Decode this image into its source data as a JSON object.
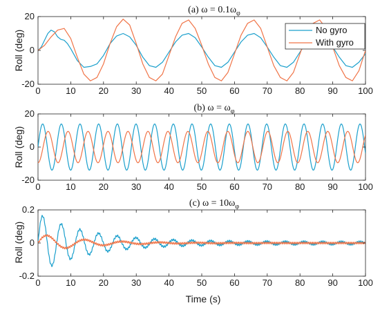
{
  "figure": {
    "xlabel": "Time (s)"
  },
  "chart_data": [
    {
      "type": "line",
      "title": "(a) ω = 0.1ω",
      "title_sub": "φ",
      "ylabel": "Roll (deg)",
      "xlim": [
        0,
        100
      ],
      "ylim": [
        -20,
        20
      ],
      "xticks": [
        "0",
        "10",
        "20",
        "30",
        "40",
        "50",
        "60",
        "70",
        "80",
        "90",
        "100"
      ],
      "yticks": [
        "20",
        "0",
        "-20"
      ],
      "ytick_values": [
        20,
        0,
        -20
      ],
      "grid": false,
      "legend": {
        "placement": "top-right",
        "entries": [
          "No gyro",
          "With gyro"
        ]
      },
      "series": [
        {
          "name": "No gyro",
          "color": "#1a9fcc",
          "x": [
            0,
            1,
            2,
            3,
            4,
            5,
            6,
            7,
            8,
            9,
            10,
            12,
            14,
            16,
            18,
            20,
            22,
            24,
            26,
            28,
            30,
            32,
            34,
            36,
            38,
            40,
            42,
            44,
            46,
            48,
            50,
            52,
            54,
            56,
            58,
            60,
            62,
            64,
            66,
            68,
            70,
            72,
            74,
            76,
            78,
            80,
            82,
            84,
            86,
            88,
            90,
            92,
            94,
            96,
            98,
            100
          ],
          "y": [
            0,
            2,
            6,
            10,
            12,
            11,
            8,
            6.5,
            6,
            4,
            1,
            -6,
            -10,
            -9.5,
            -8,
            -3,
            4,
            8.5,
            10,
            8,
            3,
            -4,
            -9,
            -10,
            -7,
            -1,
            5,
            9,
            10,
            7.5,
            2,
            -4,
            -9,
            -10,
            -7,
            -1,
            5,
            9,
            10,
            7.5,
            2,
            -4,
            -9,
            -10,
            -7,
            -1,
            5,
            9,
            10,
            7.5,
            2,
            -4,
            -9,
            -10,
            -7,
            -2
          ]
        },
        {
          "name": "With gyro",
          "color": "#f07346",
          "x": [
            0,
            2,
            4,
            6,
            8,
            10,
            12,
            14,
            16,
            18,
            20,
            22,
            24,
            26,
            28,
            30,
            32,
            34,
            36,
            38,
            40,
            42,
            44,
            46,
            48,
            50,
            52,
            54,
            56,
            58,
            60,
            62,
            64,
            66,
            68,
            70,
            72,
            74,
            76,
            78,
            80,
            82,
            84,
            86,
            88,
            90,
            92,
            94,
            96,
            98,
            100
          ],
          "y": [
            0,
            3,
            8,
            12,
            13,
            7,
            -4,
            -14,
            -18,
            -16,
            -8,
            4,
            14,
            18.5,
            15,
            4,
            -8,
            -16,
            -18,
            -14,
            -3,
            8,
            16,
            18,
            13,
            3,
            -8,
            -16,
            -18,
            -13,
            -2,
            9,
            16,
            18,
            13,
            2,
            -9,
            -16,
            -18,
            -13,
            -2,
            9,
            16,
            18,
            13,
            2,
            -9,
            -16,
            -18,
            -12,
            0
          ]
        }
      ]
    },
    {
      "type": "line",
      "title": "(b) ω = ω",
      "title_sub": "φ",
      "ylabel": "Roll (deg)",
      "xlim": [
        0,
        100
      ],
      "ylim": [
        -20,
        20
      ],
      "xticks": [
        "0",
        "10",
        "20",
        "30",
        "40",
        "50",
        "60",
        "70",
        "80",
        "90",
        "100"
      ],
      "yticks": [
        "20",
        "0",
        "-20"
      ],
      "ytick_values": [
        20,
        0,
        -20
      ],
      "grid": false,
      "series": [
        {
          "name": "No gyro",
          "color": "#1a9fcc",
          "amplitude": 14,
          "period": 5.7,
          "phase": 0,
          "points": 400
        },
        {
          "name": "With gyro",
          "color": "#f07346",
          "amplitude": 9.5,
          "period": 6.1,
          "phase": 1.6,
          "points": 400
        }
      ]
    },
    {
      "type": "line",
      "title": "(c) ω = 10ω",
      "title_sub": "φ",
      "ylabel": "Roll (deg)",
      "xlim": [
        0,
        100
      ],
      "ylim": [
        -0.2,
        0.2
      ],
      "xticks": [
        "0",
        "10",
        "20",
        "30",
        "40",
        "50",
        "60",
        "70",
        "80",
        "90",
        "100"
      ],
      "yticks": [
        "0.2",
        "0",
        "-0.2"
      ],
      "ytick_values": [
        0.2,
        0,
        -0.2
      ],
      "grid": false,
      "series": [
        {
          "name": "No gyro",
          "color": "#1a9fcc",
          "amplitude": 0.17,
          "period": 5.7,
          "decay": 0.065,
          "floor": 0.008,
          "ripple": 0.006,
          "points": 900
        },
        {
          "name": "With gyro",
          "color": "#f07346",
          "amplitude": 0.055,
          "period": 11.5,
          "decay": 0.07,
          "floor": 0.0,
          "ripple": 0.006,
          "points": 900
        }
      ]
    }
  ]
}
